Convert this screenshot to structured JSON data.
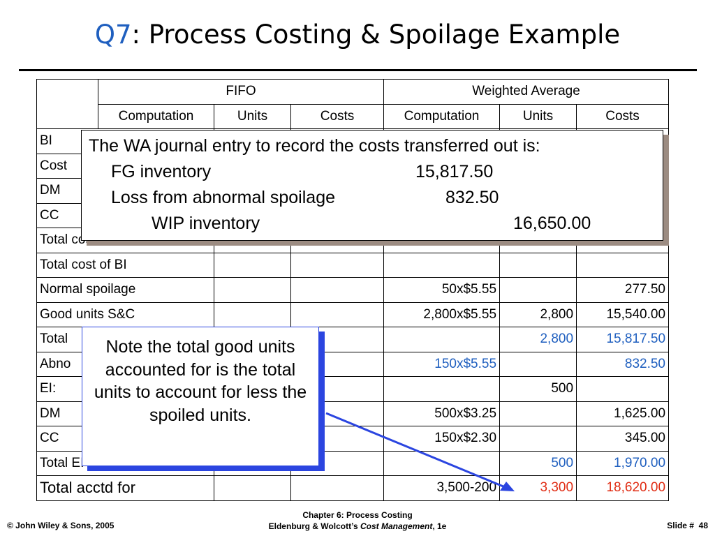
{
  "title": {
    "q": "Q7",
    "rest": ": Process Costing & Spoilage Example"
  },
  "table": {
    "groups": {
      "fifo": "FIFO",
      "wa": "Weighted Average"
    },
    "cols": {
      "computation": "Computation",
      "units": "Units",
      "costs": "Costs"
    },
    "rows": {
      "bi": "BI",
      "cost_added": "Cost",
      "dm": "DM",
      "cc": "CC",
      "total_costs_added": "Total costs added",
      "total_cost_bi": "Total cost of BI",
      "normal_spoilage": {
        "label": "Normal spoilage",
        "wa_comp": "50x$5.55",
        "wa_costs": "277.50"
      },
      "good_units": {
        "label": "Good units S&C",
        "wa_comp": "2,800x$5.55",
        "wa_units": "2,800",
        "wa_costs": "15,540.00"
      },
      "total_good": {
        "label": "Total",
        "wa_units": "2,800",
        "wa_costs": "15,817.50"
      },
      "abnormal": {
        "label": "Abno",
        "wa_comp": "150x$5.55",
        "wa_costs": "832.50"
      },
      "ei": {
        "label": "EI:",
        "wa_units": "500"
      },
      "ei_dm": {
        "label": "DM",
        "wa_comp": "500x$3.25",
        "wa_costs": "1,625.00"
      },
      "ei_cc": {
        "label": "CC",
        "wa_comp": "150x$2.30",
        "wa_costs": "345.00"
      },
      "total_ei": {
        "label": "Total EI costs",
        "wa_units": "500",
        "wa_costs": "1,970.00"
      },
      "total_acctd": {
        "label": "Total acctd for",
        "wa_comp": "3,500-200",
        "wa_units": "3,300",
        "wa_costs": "18,620.00"
      }
    }
  },
  "journal_callout": {
    "heading": "The WA journal entry to record the costs transferred out is:",
    "line1_account": "FG inventory",
    "line1_amount": "15,817.50",
    "line2_account": "Loss from abnormal spoilage",
    "line2_amount": "832.50",
    "line3_account": "WIP inventory",
    "line3_amount": "16,650.00"
  },
  "note_callout": {
    "text": "Note the total good units accounted for is the total units to account for less the spoiled units."
  },
  "footer": {
    "copyright": "© John Wiley & Sons, 2005",
    "chapter": "Chapter 6: Process Costing",
    "book_authors": "Eldenburg & Wolcott’s ",
    "book_title": "Cost Management",
    "book_edition": ", 1e",
    "slide_label": "Slide #",
    "slide_number": "48"
  },
  "colors": {
    "accent_blue": "#1f5fbf",
    "highlight_red": "#e02b12",
    "shadow_gray": "#9c8c82",
    "arrow_blue": "#2b45e0"
  }
}
